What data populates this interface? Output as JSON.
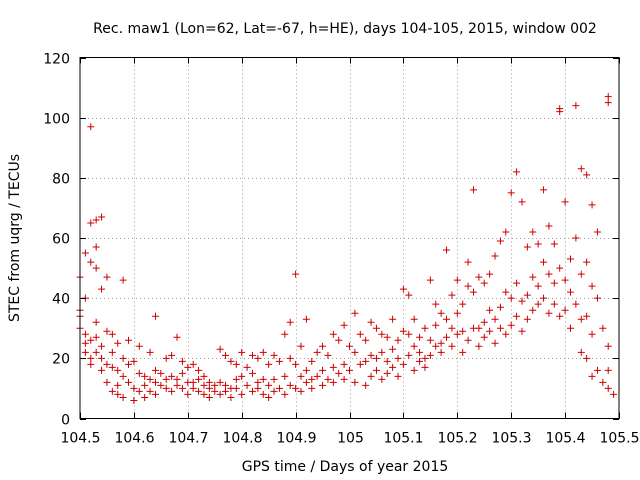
{
  "chart_data": {
    "type": "scatter",
    "title": "Rec. maw1 (Lon=62, Lat=-67, h=HE), days 104-105, 2015, window 002",
    "xlabel": "GPS time / Days of year 2015",
    "ylabel": "STEC from uqrg / TECUs",
    "xlim": [
      104.5,
      105.5
    ],
    "ylim": [
      0,
      120
    ],
    "xticks": [
      104.5,
      104.6,
      104.7,
      104.8,
      104.9,
      105,
      105.1,
      105.2,
      105.3,
      105.4,
      105.5
    ],
    "xtick_labels": [
      "104.5",
      "104.6",
      "104.7",
      "104.8",
      "104.9",
      "105",
      "105.1",
      "105.2",
      "105.3",
      "105.4",
      "105.5"
    ],
    "yticks": [
      0,
      20,
      40,
      60,
      80,
      100,
      120
    ],
    "ytick_labels": [
      "0",
      "20",
      "40",
      "60",
      "80",
      "100",
      "120"
    ],
    "grid": true,
    "marker": "plus",
    "color": "#cc0000",
    "series": [
      {
        "name": "STEC",
        "points": [
          [
            104.5,
            47
          ],
          [
            104.5,
            36
          ],
          [
            104.51,
            55
          ],
          [
            104.51,
            40
          ],
          [
            104.52,
            97
          ],
          [
            104.52,
            65
          ],
          [
            104.52,
            52
          ],
          [
            104.53,
            66
          ],
          [
            104.53,
            57
          ],
          [
            104.53,
            50
          ],
          [
            104.54,
            67
          ],
          [
            104.54,
            43
          ],
          [
            104.55,
            47
          ],
          [
            104.58,
            46
          ],
          [
            104.64,
            34
          ],
          [
            104.9,
            48
          ],
          [
            104.5,
            34
          ],
          [
            104.5,
            30
          ],
          [
            104.51,
            28
          ],
          [
            104.51,
            25
          ],
          [
            104.51,
            22
          ],
          [
            104.52,
            26
          ],
          [
            104.52,
            20
          ],
          [
            104.52,
            18
          ],
          [
            104.53,
            32
          ],
          [
            104.53,
            27
          ],
          [
            104.53,
            22
          ],
          [
            104.54,
            24
          ],
          [
            104.54,
            20
          ],
          [
            104.54,
            16
          ],
          [
            104.55,
            29
          ],
          [
            104.55,
            18
          ],
          [
            104.55,
            12
          ],
          [
            104.56,
            28
          ],
          [
            104.56,
            22
          ],
          [
            104.56,
            17
          ],
          [
            104.56,
            9
          ],
          [
            104.57,
            25
          ],
          [
            104.57,
            16
          ],
          [
            104.57,
            11
          ],
          [
            104.57,
            8
          ],
          [
            104.58,
            20
          ],
          [
            104.58,
            14
          ],
          [
            104.58,
            7
          ],
          [
            104.59,
            26
          ],
          [
            104.59,
            18
          ],
          [
            104.59,
            12
          ],
          [
            104.6,
            19
          ],
          [
            104.6,
            10
          ],
          [
            104.6,
            6
          ],
          [
            104.61,
            24
          ],
          [
            104.61,
            15
          ],
          [
            104.61,
            9
          ],
          [
            104.62,
            14
          ],
          [
            104.62,
            11
          ],
          [
            104.62,
            7
          ],
          [
            104.63,
            22
          ],
          [
            104.63,
            13
          ],
          [
            104.63,
            9
          ],
          [
            104.64,
            16
          ],
          [
            104.64,
            12
          ],
          [
            104.64,
            8
          ],
          [
            104.65,
            15
          ],
          [
            104.65,
            11
          ],
          [
            104.66,
            20
          ],
          [
            104.66,
            13
          ],
          [
            104.66,
            10
          ],
          [
            104.67,
            21
          ],
          [
            104.67,
            14
          ],
          [
            104.67,
            9
          ],
          [
            104.68,
            27
          ],
          [
            104.68,
            13
          ],
          [
            104.68,
            11
          ],
          [
            104.69,
            19
          ],
          [
            104.69,
            15
          ],
          [
            104.69,
            10
          ],
          [
            104.7,
            17
          ],
          [
            104.7,
            12
          ],
          [
            104.7,
            8
          ],
          [
            104.71,
            18
          ],
          [
            104.71,
            12
          ],
          [
            104.71,
            10
          ],
          [
            104.72,
            16
          ],
          [
            104.72,
            13
          ],
          [
            104.72,
            9
          ],
          [
            104.73,
            14
          ],
          [
            104.73,
            11
          ],
          [
            104.73,
            8
          ],
          [
            104.74,
            12
          ],
          [
            104.74,
            10
          ],
          [
            104.74,
            7
          ],
          [
            104.75,
            11
          ],
          [
            104.75,
            9
          ],
          [
            104.76,
            23
          ],
          [
            104.76,
            12
          ],
          [
            104.76,
            8
          ],
          [
            104.77,
            21
          ],
          [
            104.77,
            11
          ],
          [
            104.77,
            9
          ],
          [
            104.78,
            19
          ],
          [
            104.78,
            10
          ],
          [
            104.78,
            7
          ],
          [
            104.79,
            18
          ],
          [
            104.79,
            13
          ],
          [
            104.79,
            10
          ],
          [
            104.8,
            22
          ],
          [
            104.8,
            14
          ],
          [
            104.8,
            8
          ],
          [
            104.81,
            17
          ],
          [
            104.81,
            11
          ],
          [
            104.82,
            21
          ],
          [
            104.82,
            15
          ],
          [
            104.82,
            9
          ],
          [
            104.83,
            20
          ],
          [
            104.83,
            12
          ],
          [
            104.83,
            10
          ],
          [
            104.84,
            22
          ],
          [
            104.84,
            13
          ],
          [
            104.84,
            8
          ],
          [
            104.85,
            18
          ],
          [
            104.85,
            11
          ],
          [
            104.85,
            7
          ],
          [
            104.86,
            21
          ],
          [
            104.86,
            13
          ],
          [
            104.86,
            9
          ],
          [
            104.87,
            19
          ],
          [
            104.87,
            10
          ],
          [
            104.88,
            28
          ],
          [
            104.88,
            14
          ],
          [
            104.88,
            8
          ],
          [
            104.89,
            32
          ],
          [
            104.89,
            20
          ],
          [
            104.89,
            11
          ],
          [
            104.9,
            18
          ],
          [
            104.9,
            10
          ],
          [
            104.91,
            24
          ],
          [
            104.91,
            14
          ],
          [
            104.91,
            9
          ],
          [
            104.92,
            33
          ],
          [
            104.92,
            16
          ],
          [
            104.92,
            12
          ],
          [
            104.93,
            19
          ],
          [
            104.93,
            13
          ],
          [
            104.93,
            10
          ],
          [
            104.94,
            22
          ],
          [
            104.94,
            14
          ],
          [
            104.95,
            24
          ],
          [
            104.95,
            16
          ],
          [
            104.95,
            11
          ],
          [
            104.96,
            21
          ],
          [
            104.96,
            13
          ],
          [
            104.97,
            28
          ],
          [
            104.97,
            17
          ],
          [
            104.97,
            12
          ],
          [
            104.98,
            26
          ],
          [
            104.98,
            15
          ],
          [
            104.99,
            31
          ],
          [
            104.99,
            18
          ],
          [
            104.99,
            13
          ],
          [
            105.0,
            24
          ],
          [
            105.0,
            16
          ],
          [
            105.01,
            35
          ],
          [
            105.01,
            22
          ],
          [
            105.01,
            12
          ],
          [
            105.02,
            28
          ],
          [
            105.02,
            18
          ],
          [
            105.03,
            26
          ],
          [
            105.03,
            19
          ],
          [
            105.03,
            11
          ],
          [
            105.04,
            32
          ],
          [
            105.04,
            21
          ],
          [
            105.04,
            14
          ],
          [
            105.05,
            30
          ],
          [
            105.05,
            20
          ],
          [
            105.05,
            16
          ],
          [
            105.06,
            28
          ],
          [
            105.06,
            22
          ],
          [
            105.06,
            13
          ],
          [
            105.07,
            27
          ],
          [
            105.07,
            19
          ],
          [
            105.07,
            15
          ],
          [
            105.08,
            33
          ],
          [
            105.08,
            23
          ],
          [
            105.08,
            17
          ],
          [
            105.09,
            26
          ],
          [
            105.09,
            20
          ],
          [
            105.09,
            14
          ],
          [
            105.1,
            43
          ],
          [
            105.1,
            29
          ],
          [
            105.1,
            18
          ],
          [
            105.11,
            41
          ],
          [
            105.11,
            28
          ],
          [
            105.11,
            21
          ],
          [
            105.12,
            33
          ],
          [
            105.12,
            24
          ],
          [
            105.12,
            16
          ],
          [
            105.13,
            27
          ],
          [
            105.13,
            22
          ],
          [
            105.13,
            19
          ],
          [
            105.14,
            30
          ],
          [
            105.14,
            20
          ],
          [
            105.14,
            17
          ],
          [
            105.15,
            46
          ],
          [
            105.15,
            26
          ],
          [
            105.15,
            21
          ],
          [
            105.16,
            38
          ],
          [
            105.16,
            31
          ],
          [
            105.16,
            24
          ],
          [
            105.17,
            35
          ],
          [
            105.17,
            25
          ],
          [
            105.17,
            22
          ],
          [
            105.18,
            56
          ],
          [
            105.18,
            33
          ],
          [
            105.18,
            27
          ],
          [
            105.19,
            41
          ],
          [
            105.19,
            30
          ],
          [
            105.19,
            24
          ],
          [
            105.2,
            46
          ],
          [
            105.2,
            35
          ],
          [
            105.2,
            28
          ],
          [
            105.21,
            38
          ],
          [
            105.21,
            29
          ],
          [
            105.21,
            22
          ],
          [
            105.22,
            52
          ],
          [
            105.22,
            44
          ],
          [
            105.22,
            26
          ],
          [
            105.23,
            76
          ],
          [
            105.23,
            42
          ],
          [
            105.23,
            30
          ],
          [
            105.24,
            47
          ],
          [
            105.24,
            30
          ],
          [
            105.24,
            24
          ],
          [
            105.25,
            45
          ],
          [
            105.25,
            32
          ],
          [
            105.25,
            27
          ],
          [
            105.26,
            48
          ],
          [
            105.26,
            36
          ],
          [
            105.26,
            29
          ],
          [
            105.27,
            54
          ],
          [
            105.27,
            33
          ],
          [
            105.27,
            25
          ],
          [
            105.28,
            59
          ],
          [
            105.28,
            37
          ],
          [
            105.28,
            30
          ],
          [
            105.29,
            62
          ],
          [
            105.29,
            42
          ],
          [
            105.29,
            28
          ],
          [
            105.3,
            75
          ],
          [
            105.3,
            40
          ],
          [
            105.3,
            31
          ],
          [
            105.31,
            82
          ],
          [
            105.31,
            45
          ],
          [
            105.31,
            34
          ],
          [
            105.32,
            72
          ],
          [
            105.32,
            39
          ],
          [
            105.32,
            29
          ],
          [
            105.33,
            57
          ],
          [
            105.33,
            41
          ],
          [
            105.33,
            33
          ],
          [
            105.34,
            62
          ],
          [
            105.34,
            47
          ],
          [
            105.34,
            36
          ],
          [
            105.35,
            58
          ],
          [
            105.35,
            44
          ],
          [
            105.35,
            38
          ],
          [
            105.36,
            76
          ],
          [
            105.36,
            52
          ],
          [
            105.36,
            40
          ],
          [
            105.37,
            64
          ],
          [
            105.37,
            48
          ],
          [
            105.37,
            35
          ],
          [
            105.38,
            58
          ],
          [
            105.38,
            45
          ],
          [
            105.38,
            38
          ],
          [
            105.39,
            103
          ],
          [
            105.39,
            102
          ],
          [
            105.39,
            50
          ],
          [
            105.39,
            34
          ],
          [
            105.4,
            72
          ],
          [
            105.4,
            46
          ],
          [
            105.4,
            36
          ],
          [
            105.41,
            53
          ],
          [
            105.41,
            42
          ],
          [
            105.41,
            30
          ],
          [
            105.42,
            104
          ],
          [
            105.42,
            60
          ],
          [
            105.42,
            38
          ],
          [
            105.43,
            83
          ],
          [
            105.43,
            48
          ],
          [
            105.43,
            33
          ],
          [
            105.43,
            22
          ],
          [
            105.44,
            81
          ],
          [
            105.44,
            52
          ],
          [
            105.44,
            34
          ],
          [
            105.44,
            20
          ],
          [
            105.45,
            71
          ],
          [
            105.45,
            44
          ],
          [
            105.45,
            28
          ],
          [
            105.45,
            14
          ],
          [
            105.46,
            62
          ],
          [
            105.46,
            40
          ],
          [
            105.46,
            16
          ],
          [
            105.47,
            30
          ],
          [
            105.47,
            12
          ],
          [
            105.48,
            107
          ],
          [
            105.48,
            105
          ],
          [
            105.48,
            24
          ],
          [
            105.48,
            16
          ],
          [
            105.48,
            10
          ],
          [
            105.49,
            8
          ]
        ]
      }
    ]
  }
}
